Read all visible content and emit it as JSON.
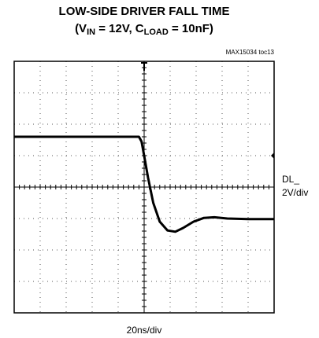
{
  "chart_data": {
    "type": "line",
    "title": "LOW-SIDE DRIVER FALL TIME",
    "subtitle_parts": [
      "(V",
      "IN",
      " = 12V, C",
      "LOAD",
      " = 10nF)"
    ],
    "note": "MAX15034 toc13",
    "channel_label": "DL_",
    "y_scale_label": "2V/div",
    "x_scale_label": "20ns/div",
    "xlim": [
      0,
      10
    ],
    "ylim": [
      0,
      8
    ],
    "xticks": [
      0,
      1,
      2,
      3,
      4,
      5,
      6,
      7,
      8,
      9,
      10
    ],
    "yticks": [
      0,
      1,
      2,
      3,
      4,
      5,
      6,
      7,
      8
    ],
    "grid": true,
    "series": [
      {
        "color": "#000000",
        "x": [
          0,
          2,
          4,
          4.8,
          4.9,
          5.0,
          5.15,
          5.35,
          5.6,
          5.9,
          6.2,
          6.5,
          6.9,
          7.3,
          7.7,
          8.2,
          9,
          10
        ],
        "values": [
          5.6,
          5.6,
          5.6,
          5.6,
          5.45,
          5.0,
          4.3,
          3.5,
          2.9,
          2.62,
          2.58,
          2.7,
          2.9,
          3.02,
          3.04,
          3.0,
          2.98,
          2.98
        ]
      }
    ]
  }
}
